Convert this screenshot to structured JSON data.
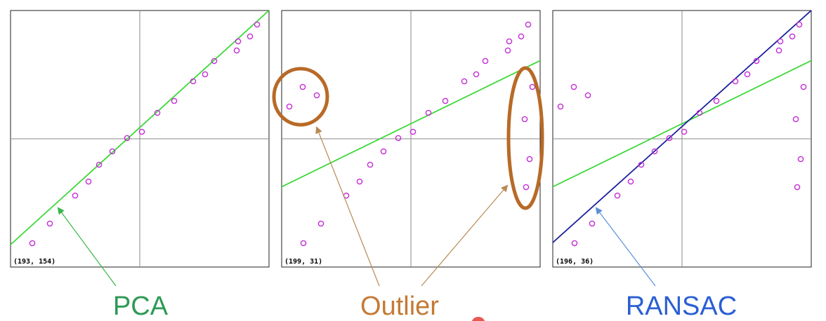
{
  "colors": {
    "point": "#c42bd6",
    "fit_line": "#3ed83a",
    "ransac_line": "#1b1f9c",
    "axis": "#8a8a8a",
    "frame": "#222222",
    "outlier": "#b86a27",
    "pca_label": "#2e9a55",
    "outlier_label": "#c47a35",
    "ransac_label": "#2a5fd3",
    "pca_arrow": "#39b54a",
    "outlier_arrow": "#b98955",
    "ransac_arrow": "#5b8fd9",
    "cursor_dot": "#e53935"
  },
  "panels": [
    {
      "id": "pca",
      "coord_text": "(193, 154)",
      "points": [
        [
          -153,
          -149
        ],
        [
          -128,
          -121
        ],
        [
          -92,
          -81
        ],
        [
          -73,
          -61
        ],
        [
          -58,
          -37
        ],
        [
          -39,
          -18
        ],
        [
          -18,
          1
        ],
        [
          3,
          10
        ],
        [
          25,
          37
        ],
        [
          49,
          54
        ],
        [
          76,
          82
        ],
        [
          93,
          92
        ],
        [
          106,
          111
        ],
        [
          138,
          126
        ],
        [
          140,
          139
        ],
        [
          157,
          146
        ],
        [
          167,
          163
        ]
      ],
      "green_line": [
        [
          -185,
          -152
        ],
        [
          185,
          184
        ]
      ]
    },
    {
      "id": "outlier",
      "coord_text": "(199, 31)",
      "points": [
        [
          -153,
          -149
        ],
        [
          -128,
          -121
        ],
        [
          -92,
          -81
        ],
        [
          -73,
          -61
        ],
        [
          -58,
          -37
        ],
        [
          -39,
          -18
        ],
        [
          -18,
          1
        ],
        [
          3,
          10
        ],
        [
          25,
          37
        ],
        [
          49,
          54
        ],
        [
          76,
          82
        ],
        [
          93,
          92
        ],
        [
          106,
          111
        ],
        [
          138,
          126
        ],
        [
          140,
          139
        ],
        [
          157,
          146
        ],
        [
          167,
          163
        ],
        [
          -173,
          46
        ],
        [
          -154,
          74
        ],
        [
          -134,
          62
        ],
        [
          173,
          74
        ],
        [
          162,
          28
        ],
        [
          169,
          -29
        ],
        [
          164,
          -69
        ]
      ],
      "green_line": [
        [
          -185,
          -69
        ],
        [
          185,
          112
        ]
      ]
    },
    {
      "id": "ransac",
      "coord_text": "(196, 36)",
      "points": [
        [
          -153,
          -149
        ],
        [
          -128,
          -121
        ],
        [
          -92,
          -81
        ],
        [
          -73,
          -61
        ],
        [
          -58,
          -37
        ],
        [
          -39,
          -18
        ],
        [
          -18,
          1
        ],
        [
          3,
          10
        ],
        [
          25,
          37
        ],
        [
          49,
          54
        ],
        [
          76,
          82
        ],
        [
          93,
          92
        ],
        [
          106,
          111
        ],
        [
          138,
          126
        ],
        [
          140,
          139
        ],
        [
          157,
          146
        ],
        [
          167,
          163
        ],
        [
          -173,
          46
        ],
        [
          -154,
          74
        ],
        [
          -134,
          62
        ],
        [
          173,
          74
        ],
        [
          162,
          28
        ],
        [
          169,
          -29
        ],
        [
          164,
          -69
        ]
      ],
      "green_line": [
        [
          -185,
          -69
        ],
        [
          185,
          112
        ]
      ],
      "blue_line": [
        [
          -185,
          -149
        ],
        [
          185,
          184
        ]
      ]
    }
  ],
  "labels": {
    "pca": "PCA",
    "outlier": "Outlier",
    "ransac": "RANSAC"
  }
}
